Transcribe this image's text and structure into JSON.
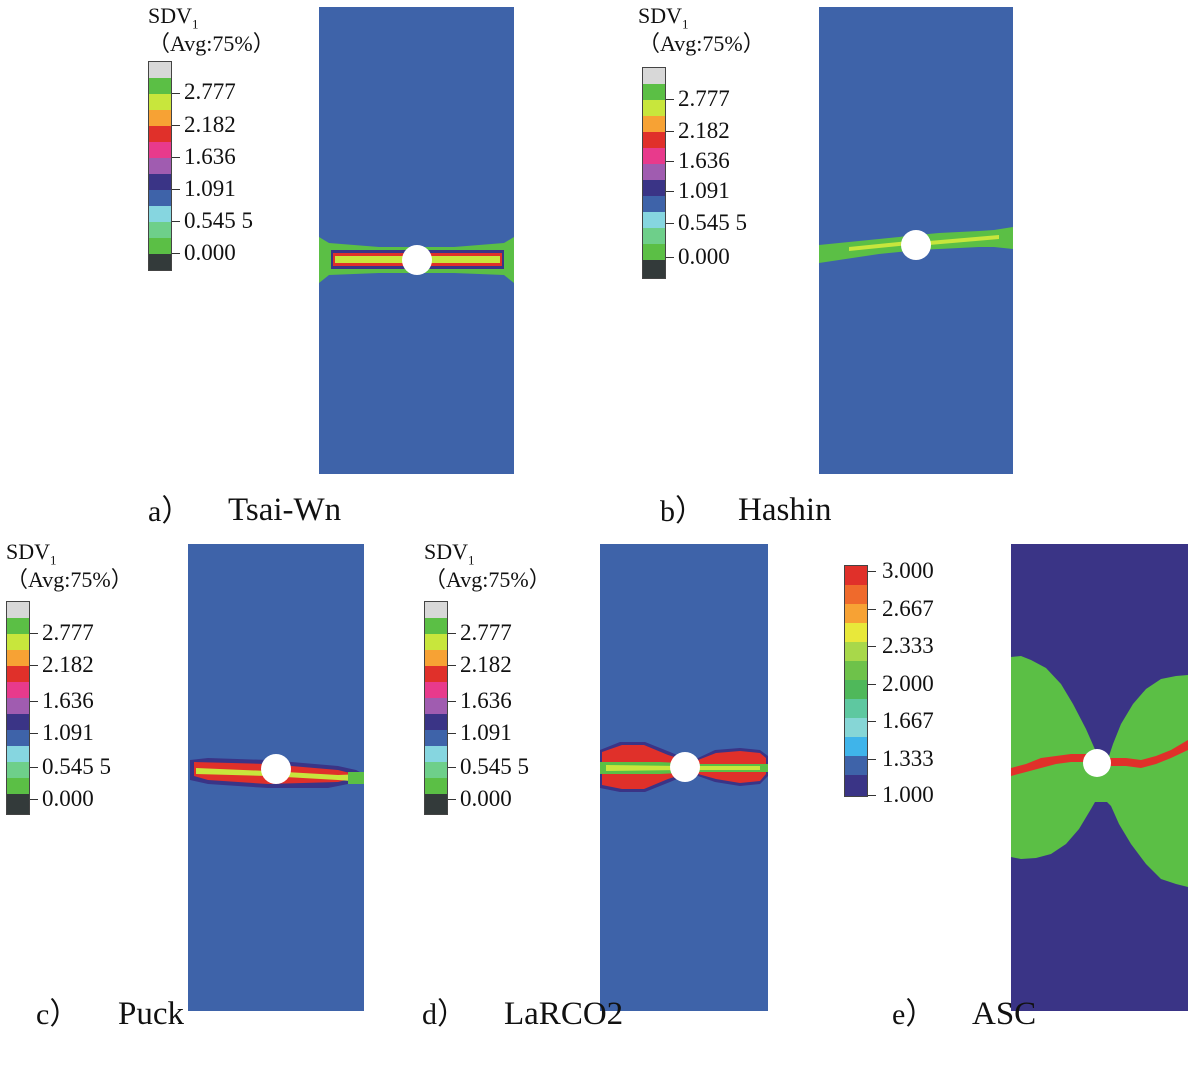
{
  "figure": {
    "legend_title": "SDV",
    "legend_title_sub": "1",
    "legend_avg": "（Avg:75%）",
    "sdv_ticks": [
      "2.777",
      "2.182",
      "1.636",
      "1.091",
      "0.545 5",
      "0.000"
    ],
    "asc_ticks": [
      "3.000",
      "2.667",
      "2.333",
      "2.000",
      "1.667",
      "1.333",
      "1.000"
    ],
    "colors": {
      "specimen_blue": "#3e63a9",
      "asc_background": "#3a3486",
      "green": "#5bbf45",
      "yellow_green": "#c8e63c",
      "red": "#e0302a",
      "hole": "#ffffff"
    },
    "panels": [
      {
        "letter": "a）",
        "name": "Tsai-Wn"
      },
      {
        "letter": "b）",
        "name": "Hashin"
      },
      {
        "letter": "c）",
        "name": "Puck"
      },
      {
        "letter": "d）",
        "name": "LaRCO2"
      },
      {
        "letter": "e）",
        "name": "ASC"
      }
    ]
  }
}
